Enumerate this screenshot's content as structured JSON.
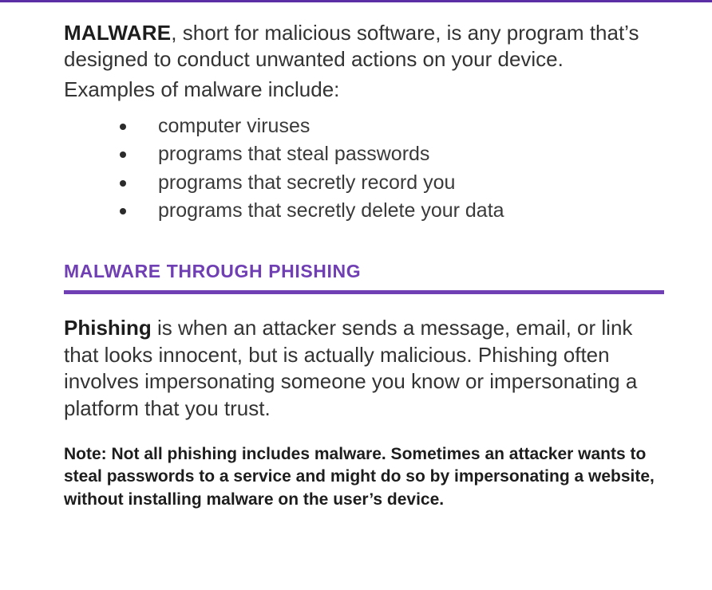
{
  "colors": {
    "accent": "#6f3fb3",
    "rule": "#6f3fb3",
    "top_rule": "#5b2ea6",
    "text": "#333333"
  },
  "intro": {
    "lead": "MALWARE",
    "body": ", short for malicious software, is any program that’s designed to conduct unwanted actions on your device.",
    "examples_label": "Examples of malware include:"
  },
  "examples": [
    "computer viruses",
    "programs that steal passwords",
    "programs that secretly record you",
    "programs that secretly delete your data"
  ],
  "section": {
    "title": "MALWARE THROUGH PHISHING"
  },
  "phishing": {
    "lead": "Phishing",
    "body": " is when an attacker sends a message, email, or link that looks innocent, but is actually malicious. Phishing often involves impersonating someone you know or impersonating a platform that you trust."
  },
  "note": "Note: Not all phishing includes malware. Sometimes an attacker wants to steal passwords to a service and might do so by impersonating a website, without installing malware on the user’s device."
}
